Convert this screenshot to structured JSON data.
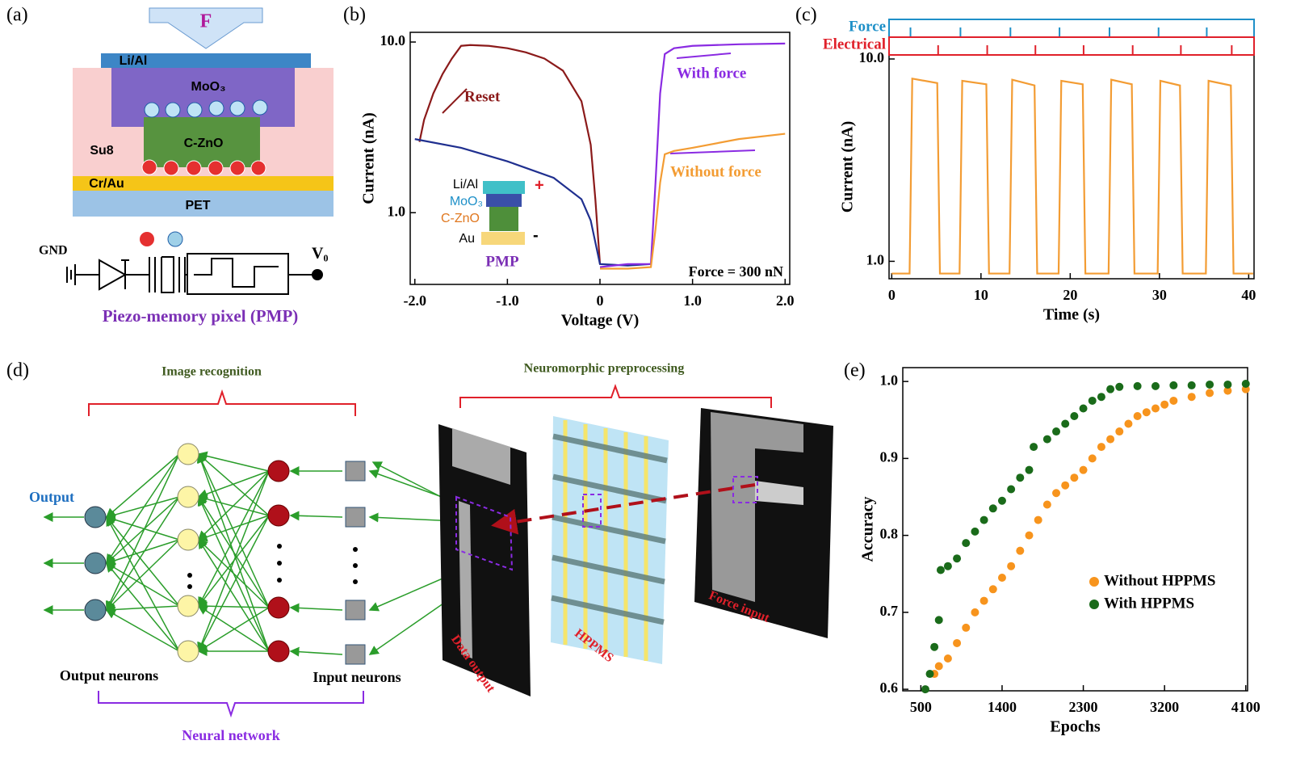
{
  "panels": {
    "a": {
      "label": "(a)",
      "force": "F",
      "layers": [
        "Li/Al",
        "MoO₃",
        "C-ZnO",
        "Su8",
        "Cr/Au",
        "PET"
      ],
      "gnd": "GND",
      "v0": "V₀",
      "caption": "Piezo-memory pixel (PMP)"
    },
    "d": {
      "label": "(d)",
      "image_recognition": "Image recognition",
      "neuromorphic": "Neuromorphic preprocessing",
      "output": "Output",
      "output_neurons": "Output neurons",
      "input_neurons": "Input neurons",
      "neural_network": "Neural network",
      "data_output": "Data output",
      "hppms": "HPPMS",
      "force_input": "Force input"
    }
  },
  "chart_data": [
    {
      "type": "line",
      "panel_label": "(b)",
      "xlabel": "Voltage (V)",
      "ylabel": "Current (nA)",
      "log_y": true,
      "xlim": [
        -2.05,
        2.05
      ],
      "ylim": [
        0.38,
        11.4
      ],
      "xticks": [
        {
          "value": -2,
          "label": "-2.0"
        },
        {
          "value": -1,
          "label": "-1.0"
        },
        0,
        {
          "value": 1,
          "label": "1.0"
        },
        {
          "value": 2,
          "label": "2.0"
        }
      ],
      "yticks": [
        {
          "value": 1,
          "label": "1.0"
        },
        {
          "value": 10,
          "label": "10.0"
        }
      ],
      "annotation": "Force = 300 nN",
      "inset": {
        "labels": [
          "Li/Al",
          "MoO₃",
          "C-ZnO",
          "Au"
        ],
        "plus": "+",
        "minus": "-",
        "caption": "PMP"
      },
      "series": [
        {
          "name": "Reset",
          "color": "#8b1a1a",
          "x": [
            -1.95,
            -1.9,
            -1.8,
            -1.7,
            -1.6,
            -1.5,
            -1.4,
            -1.2,
            -1.0,
            -0.8,
            -0.6,
            -0.4,
            -0.2,
            -0.1,
            -0.05,
            0
          ],
          "values": [
            2.6,
            3.5,
            5,
            6.5,
            8,
            9.5,
            9.6,
            9.5,
            9.2,
            8.7,
            8,
            6.8,
            4.5,
            2.5,
            1.2,
            0.5
          ]
        },
        {
          "color": "#1f2f8f",
          "x": [
            -2,
            -1.5,
            -1,
            -0.5,
            -0.2,
            -0.1,
            0,
            0.3,
            0.55
          ],
          "values": [
            2.7,
            2.4,
            2.0,
            1.6,
            1.2,
            0.9,
            0.5,
            0.49,
            0.5
          ]
        },
        {
          "name": "With force",
          "color": "#8a2be2",
          "x": [
            0,
            0.3,
            0.55,
            0.6,
            0.65,
            0.7,
            0.8,
            1.0,
            1.5,
            2.0
          ],
          "values": [
            0.48,
            0.5,
            0.5,
            1.5,
            5,
            8.5,
            9.2,
            9.5,
            9.7,
            9.8
          ]
        },
        {
          "name": "Without force",
          "color": "#f39c33",
          "x": [
            0,
            0.3,
            0.55,
            0.6,
            0.65,
            0.7,
            0.8,
            1.0,
            1.5,
            2.0
          ],
          "values": [
            0.47,
            0.47,
            0.48,
            0.8,
            1.5,
            2.2,
            2.3,
            2.4,
            2.7,
            2.9
          ]
        }
      ]
    },
    {
      "type": "line",
      "panel_label": "(c)",
      "xlabel": "Time (s)",
      "ylabel": "Current (nA)",
      "log_y": true,
      "xlim": [
        -0.3,
        40.6
      ],
      "ylim": [
        0.82,
        10.47
      ],
      "xticks": [
        0,
        10,
        20,
        30,
        40
      ],
      "yticks": [
        {
          "value": 1,
          "label": "1.0"
        },
        {
          "value": 10,
          "label": "10.0"
        }
      ],
      "x": [
        0,
        2.0,
        2.3,
        5.1,
        5.4,
        7.6,
        7.9,
        10.6,
        10.9,
        13.2,
        13.5,
        16.0,
        16.3,
        18.7,
        19.0,
        21.4,
        21.7,
        24.3,
        24.6,
        26.9,
        27.2,
        29.8,
        30.1,
        32.3,
        32.6,
        35.2,
        35.5,
        38.0,
        38.3,
        40.5
      ],
      "series": [
        {
          "color": "#f39c33",
          "values": [
            0.87,
            0.87,
            8.0,
            7.6,
            0.87,
            0.87,
            7.8,
            7.5,
            0.87,
            0.87,
            7.9,
            7.4,
            0.87,
            0.87,
            7.8,
            7.5,
            0.87,
            0.87,
            7.9,
            7.5,
            0.87,
            0.87,
            7.8,
            7.4,
            0.87,
            0.87,
            7.8,
            7.4,
            0.87,
            0.87
          ]
        }
      ],
      "pulse_rows": [
        {
          "name": "Force",
          "color": "#1e90c8",
          "times": [
            2.1,
            7.7,
            13.3,
            18.8,
            24.4,
            29.9,
            35.3
          ]
        },
        {
          "name": "Electrical",
          "color": "#e0202a",
          "times": [
            5.2,
            10.7,
            16.1,
            21.5,
            27,
            32.4,
            38.1
          ]
        }
      ]
    },
    {
      "type": "scatter",
      "panel_label": "(e)",
      "xlabel": "Epochs",
      "ylabel": "Accuracy",
      "legend": "lower right",
      "xlim": [
        300,
        4120
      ],
      "ylim": [
        0.598,
        1.018
      ],
      "xticks": [
        500,
        1400,
        2300,
        3200,
        4100
      ],
      "yticks": [
        0.6,
        0.7,
        0.8,
        0.9,
        {
          "value": 1,
          "label": "1.0"
        }
      ],
      "series": [
        {
          "name": "Without HPPMS",
          "color": "#f7941d",
          "x": [
            650,
            700,
            800,
            900,
            1000,
            1100,
            1200,
            1300,
            1400,
            1500,
            1600,
            1700,
            1800,
            1900,
            2000,
            2100,
            2200,
            2300,
            2400,
            2500,
            2600,
            2700,
            2800,
            2900,
            3000,
            3100,
            3200,
            3300,
            3500,
            3700,
            3900,
            4100
          ],
          "values": [
            0.62,
            0.63,
            0.64,
            0.66,
            0.68,
            0.7,
            0.715,
            0.73,
            0.745,
            0.76,
            0.78,
            0.8,
            0.82,
            0.84,
            0.855,
            0.865,
            0.875,
            0.885,
            0.9,
            0.915,
            0.925,
            0.935,
            0.945,
            0.955,
            0.96,
            0.965,
            0.97,
            0.975,
            0.98,
            0.985,
            0.988,
            0.99
          ]
        },
        {
          "name": "With HPPMS",
          "color": "#1a6b1a",
          "x": [
            550,
            600,
            650,
            700,
            720,
            800,
            900,
            1000,
            1100,
            1200,
            1300,
            1400,
            1500,
            1600,
            1700,
            1750,
            1900,
            2000,
            2100,
            2200,
            2300,
            2400,
            2500,
            2600,
            2700,
            2900,
            3100,
            3300,
            3500,
            3700,
            3900,
            4100
          ],
          "values": [
            0.6,
            0.62,
            0.655,
            0.69,
            0.755,
            0.76,
            0.77,
            0.79,
            0.805,
            0.82,
            0.835,
            0.845,
            0.86,
            0.875,
            0.885,
            0.915,
            0.925,
            0.935,
            0.945,
            0.955,
            0.965,
            0.975,
            0.98,
            0.99,
            0.993,
            0.994,
            0.994,
            0.995,
            0.995,
            0.996,
            0.996,
            0.997
          ]
        }
      ]
    }
  ]
}
